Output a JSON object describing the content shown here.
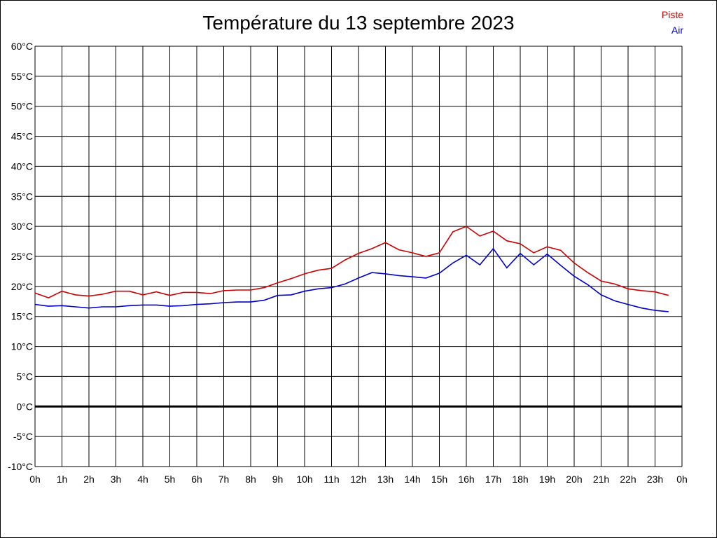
{
  "chart_data": {
    "type": "line",
    "title": "Température du 13 septembre 2023",
    "xlabel": "",
    "ylabel": "",
    "x_ticks": [
      "0h",
      "1h",
      "2h",
      "3h",
      "4h",
      "5h",
      "6h",
      "7h",
      "8h",
      "9h",
      "10h",
      "11h",
      "12h",
      "13h",
      "14h",
      "15h",
      "16h",
      "17h",
      "18h",
      "19h",
      "20h",
      "21h",
      "22h",
      "23h",
      "0h"
    ],
    "y_ticks": [
      "60°C",
      "55°C",
      "50°C",
      "45°C",
      "40°C",
      "35°C",
      "30°C",
      "25°C",
      "20°C",
      "15°C",
      "10°C",
      "5°C",
      "0°C",
      "-5°C",
      "-10°C"
    ],
    "xlim": [
      0,
      24
    ],
    "ylim": [
      -10,
      60
    ],
    "grid": true,
    "legend_position": "top-right",
    "zero_line": true,
    "x": [
      0,
      0.5,
      1,
      1.5,
      2,
      2.5,
      3,
      3.5,
      4,
      4.5,
      5,
      5.5,
      6,
      6.5,
      7,
      7.5,
      8,
      8.5,
      9,
      9.5,
      10,
      10.5,
      11,
      11.5,
      12,
      12.5,
      13,
      13.5,
      14,
      14.5,
      15,
      15.5,
      16,
      16.5,
      17,
      17.5,
      18,
      18.5,
      19,
      19.5,
      20,
      20.5,
      21,
      21.5,
      22,
      22.5,
      23,
      23.5
    ],
    "series": [
      {
        "name": "Piste",
        "color": "#cc0000",
        "values": [
          18.9,
          18.1,
          19.2,
          18.6,
          18.4,
          18.7,
          19.2,
          19.2,
          18.6,
          19.1,
          18.5,
          19.0,
          19.0,
          18.8,
          19.3,
          19.4,
          19.4,
          19.8,
          20.6,
          21.3,
          22.1,
          22.7,
          23.0,
          24.4,
          25.5,
          26.3,
          27.3,
          26.1,
          25.6,
          25.0,
          25.6,
          29.1,
          30.0,
          28.4,
          29.2,
          27.6,
          27.1,
          25.6,
          26.6,
          26.0,
          23.9,
          22.3,
          20.9,
          20.4,
          19.6,
          19.3,
          19.1,
          18.5
        ]
      },
      {
        "name": "Air",
        "color": "#0000cc",
        "values": [
          17.0,
          16.7,
          16.8,
          16.6,
          16.4,
          16.6,
          16.6,
          16.8,
          16.9,
          16.9,
          16.7,
          16.8,
          17.0,
          17.1,
          17.3,
          17.4,
          17.4,
          17.7,
          18.5,
          18.6,
          19.2,
          19.6,
          19.8,
          20.4,
          21.4,
          22.3,
          22.1,
          21.8,
          21.6,
          21.4,
          22.2,
          23.9,
          25.2,
          23.6,
          26.3,
          23.1,
          25.5,
          23.6,
          25.4,
          23.5,
          21.7,
          20.3,
          18.6,
          17.6,
          17.0,
          16.4,
          16.0,
          15.8
        ]
      }
    ]
  }
}
